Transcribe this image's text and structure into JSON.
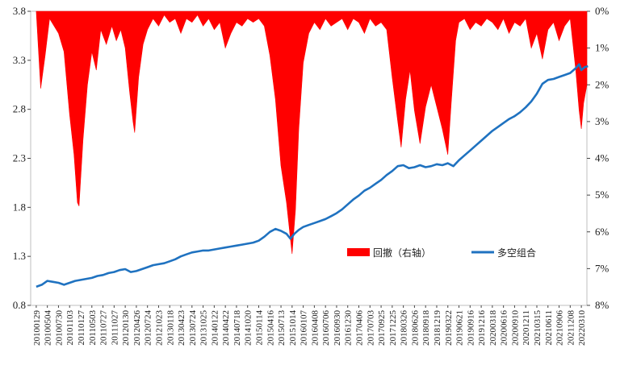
{
  "chart_data": {
    "type": "line",
    "title": "",
    "xlabel": "",
    "ylabel": "",
    "x_tick_labels": [
      "20100129",
      "20100504",
      "20100730",
      "20101103",
      "20110127",
      "20110503",
      "20110727",
      "20111027",
      "20120130",
      "20120426",
      "20120724",
      "20121023",
      "20130118",
      "20130423",
      "20130724",
      "20131025",
      "20140122",
      "20140422",
      "20140718",
      "20141020",
      "20150114",
      "20150416",
      "20150713",
      "20151014",
      "20160107",
      "20160408",
      "20160706",
      "20160930",
      "20161230",
      "20170406",
      "20170703",
      "20170925",
      "20171225",
      "20180326",
      "20180626",
      "20180918",
      "20181219",
      "20190322",
      "20190621",
      "20190916",
      "20191216",
      "20200318",
      "20200616",
      "20200910",
      "20201211",
      "20210315",
      "20210611",
      "20210906",
      "20211208",
      "20220310"
    ],
    "y_left": {
      "ticks": [
        "0.8",
        "1.3",
        "1.8",
        "2.3",
        "2.8",
        "3.3",
        "3.8"
      ],
      "ylim": [
        0.8,
        3.8
      ]
    },
    "y_right": {
      "ticks": [
        "0%",
        "1%",
        "2%",
        "3%",
        "4%",
        "5%",
        "6%",
        "7%",
        "8%"
      ],
      "ylim": [
        0,
        8
      ],
      "inverted": true
    },
    "legend_position": "right-center",
    "series": [
      {
        "name": "回撤（右轴）",
        "type": "area",
        "axis": "right",
        "color": "#ff0000",
        "points": [
          [
            0,
            0
          ],
          [
            0.4,
            2.1
          ],
          [
            0.8,
            1.2
          ],
          [
            1.2,
            0.2
          ],
          [
            2,
            0.6
          ],
          [
            2.5,
            1.1
          ],
          [
            3,
            2.8
          ],
          [
            3.4,
            3.9
          ],
          [
            3.7,
            5.2
          ],
          [
            3.85,
            5.3
          ],
          [
            4.2,
            3.5
          ],
          [
            4.6,
            2.0
          ],
          [
            5,
            1.1
          ],
          [
            5.4,
            1.6
          ],
          [
            5.8,
            0.5
          ],
          [
            6.3,
            0.9
          ],
          [
            6.8,
            0.4
          ],
          [
            7.2,
            0.8
          ],
          [
            7.6,
            0.5
          ],
          [
            8,
            1.0
          ],
          [
            8.4,
            2.2
          ],
          [
            8.7,
            3.0
          ],
          [
            8.85,
            3.3
          ],
          [
            9.2,
            1.8
          ],
          [
            9.6,
            0.9
          ],
          [
            10,
            0.5
          ],
          [
            10.5,
            0.2
          ],
          [
            11,
            0.4
          ],
          [
            11.5,
            0.1
          ],
          [
            12,
            0.3
          ],
          [
            12.5,
            0.2
          ],
          [
            13,
            0.6
          ],
          [
            13.5,
            0.2
          ],
          [
            14,
            0.3
          ],
          [
            14.5,
            0.1
          ],
          [
            15,
            0.4
          ],
          [
            15.5,
            0.2
          ],
          [
            16,
            0.5
          ],
          [
            16.5,
            0.3
          ],
          [
            17,
            1.0
          ],
          [
            17.5,
            0.6
          ],
          [
            18,
            0.3
          ],
          [
            18.5,
            0.4
          ],
          [
            19,
            0.2
          ],
          [
            19.5,
            0.3
          ],
          [
            20,
            0.2
          ],
          [
            20.5,
            0.4
          ],
          [
            21,
            1.2
          ],
          [
            21.5,
            2.4
          ],
          [
            22,
            4.2
          ],
          [
            22.5,
            5.2
          ],
          [
            22.85,
            6.2
          ],
          [
            23,
            6.6
          ],
          [
            23.3,
            5.4
          ],
          [
            23.6,
            3.2
          ],
          [
            24,
            1.4
          ],
          [
            24.5,
            0.6
          ],
          [
            25,
            0.3
          ],
          [
            25.5,
            0.5
          ],
          [
            26,
            0.2
          ],
          [
            26.5,
            0.4
          ],
          [
            27,
            0.3
          ],
          [
            27.5,
            0.2
          ],
          [
            28,
            0.5
          ],
          [
            28.5,
            0.2
          ],
          [
            29,
            0.3
          ],
          [
            29.5,
            0.6
          ],
          [
            30,
            0.2
          ],
          [
            30.5,
            0.4
          ],
          [
            31,
            0.3
          ],
          [
            31.5,
            0.5
          ],
          [
            32,
            1.8
          ],
          [
            32.5,
            3.0
          ],
          [
            32.8,
            3.7
          ],
          [
            33.2,
            2.4
          ],
          [
            33.6,
            1.6
          ],
          [
            34,
            2.7
          ],
          [
            34.5,
            3.6
          ],
          [
            35,
            2.6
          ],
          [
            35.5,
            2.0
          ],
          [
            36,
            2.6
          ],
          [
            36.5,
            3.2
          ],
          [
            37,
            3.9
          ],
          [
            37.3,
            2.5
          ],
          [
            37.7,
            0.8
          ],
          [
            38,
            0.3
          ],
          [
            38.5,
            0.2
          ],
          [
            39,
            0.5
          ],
          [
            39.5,
            0.3
          ],
          [
            40,
            0.4
          ],
          [
            40.5,
            0.2
          ],
          [
            41,
            0.3
          ],
          [
            41.5,
            0.5
          ],
          [
            42,
            0.2
          ],
          [
            42.5,
            0.6
          ],
          [
            43,
            0.3
          ],
          [
            43.5,
            0.4
          ],
          [
            44,
            0.2
          ],
          [
            44.5,
            1.0
          ],
          [
            45,
            0.6
          ],
          [
            45.5,
            1.3
          ],
          [
            46,
            0.5
          ],
          [
            46.5,
            0.3
          ],
          [
            47,
            0.8
          ],
          [
            47.5,
            0.4
          ],
          [
            48,
            0.2
          ],
          [
            48.5,
            1.6
          ],
          [
            48.8,
            2.7
          ],
          [
            49,
            3.2
          ],
          [
            49.2,
            2.5
          ],
          [
            49.5,
            2.0
          ]
        ]
      },
      {
        "name": "多空组合",
        "type": "line",
        "axis": "left",
        "color": "#1f72c0",
        "points": [
          [
            0,
            0.99
          ],
          [
            0.5,
            1.01
          ],
          [
            1,
            1.05
          ],
          [
            1.5,
            1.04
          ],
          [
            2,
            1.03
          ],
          [
            2.5,
            1.01
          ],
          [
            3,
            1.03
          ],
          [
            3.5,
            1.05
          ],
          [
            4,
            1.06
          ],
          [
            4.5,
            1.07
          ],
          [
            5,
            1.08
          ],
          [
            5.5,
            1.1
          ],
          [
            6,
            1.11
          ],
          [
            6.5,
            1.13
          ],
          [
            7,
            1.14
          ],
          [
            7.5,
            1.16
          ],
          [
            8,
            1.17
          ],
          [
            8.5,
            1.14
          ],
          [
            9,
            1.15
          ],
          [
            9.5,
            1.17
          ],
          [
            10,
            1.19
          ],
          [
            10.5,
            1.21
          ],
          [
            11,
            1.22
          ],
          [
            11.5,
            1.23
          ],
          [
            12,
            1.25
          ],
          [
            12.5,
            1.27
          ],
          [
            13,
            1.3
          ],
          [
            13.5,
            1.32
          ],
          [
            14,
            1.34
          ],
          [
            14.5,
            1.35
          ],
          [
            15,
            1.36
          ],
          [
            15.5,
            1.36
          ],
          [
            16,
            1.37
          ],
          [
            16.5,
            1.38
          ],
          [
            17,
            1.39
          ],
          [
            17.5,
            1.4
          ],
          [
            18,
            1.41
          ],
          [
            18.5,
            1.42
          ],
          [
            19,
            1.43
          ],
          [
            19.5,
            1.44
          ],
          [
            20,
            1.46
          ],
          [
            20.5,
            1.5
          ],
          [
            21,
            1.55
          ],
          [
            21.5,
            1.58
          ],
          [
            22,
            1.56
          ],
          [
            22.5,
            1.53
          ],
          [
            22.85,
            1.48
          ],
          [
            23.2,
            1.53
          ],
          [
            23.6,
            1.57
          ],
          [
            24,
            1.6
          ],
          [
            24.5,
            1.62
          ],
          [
            25,
            1.64
          ],
          [
            25.5,
            1.66
          ],
          [
            26,
            1.68
          ],
          [
            26.5,
            1.71
          ],
          [
            27,
            1.74
          ],
          [
            27.5,
            1.78
          ],
          [
            28,
            1.83
          ],
          [
            28.5,
            1.88
          ],
          [
            29,
            1.92
          ],
          [
            29.5,
            1.97
          ],
          [
            30,
            2.0
          ],
          [
            30.5,
            2.04
          ],
          [
            31,
            2.08
          ],
          [
            31.5,
            2.13
          ],
          [
            32,
            2.17
          ],
          [
            32.5,
            2.22
          ],
          [
            33,
            2.23
          ],
          [
            33.5,
            2.2
          ],
          [
            34,
            2.21
          ],
          [
            34.5,
            2.23
          ],
          [
            35,
            2.21
          ],
          [
            35.5,
            2.22
          ],
          [
            36,
            2.24
          ],
          [
            36.5,
            2.23
          ],
          [
            37,
            2.25
          ],
          [
            37.5,
            2.22
          ],
          [
            38,
            2.28
          ],
          [
            38.5,
            2.33
          ],
          [
            39,
            2.38
          ],
          [
            39.5,
            2.43
          ],
          [
            40,
            2.48
          ],
          [
            40.5,
            2.53
          ],
          [
            41,
            2.58
          ],
          [
            41.5,
            2.62
          ],
          [
            42,
            2.66
          ],
          [
            42.5,
            2.7
          ],
          [
            43,
            2.73
          ],
          [
            43.5,
            2.77
          ],
          [
            44,
            2.82
          ],
          [
            44.5,
            2.88
          ],
          [
            45,
            2.96
          ],
          [
            45.5,
            3.06
          ],
          [
            46,
            3.1
          ],
          [
            46.5,
            3.11
          ],
          [
            47,
            3.13
          ],
          [
            47.5,
            3.15
          ],
          [
            48,
            3.17
          ],
          [
            48.5,
            3.22
          ],
          [
            48.8,
            3.26
          ],
          [
            49,
            3.2
          ],
          [
            49.3,
            3.23
          ],
          [
            49.6,
            3.24
          ]
        ]
      }
    ]
  }
}
